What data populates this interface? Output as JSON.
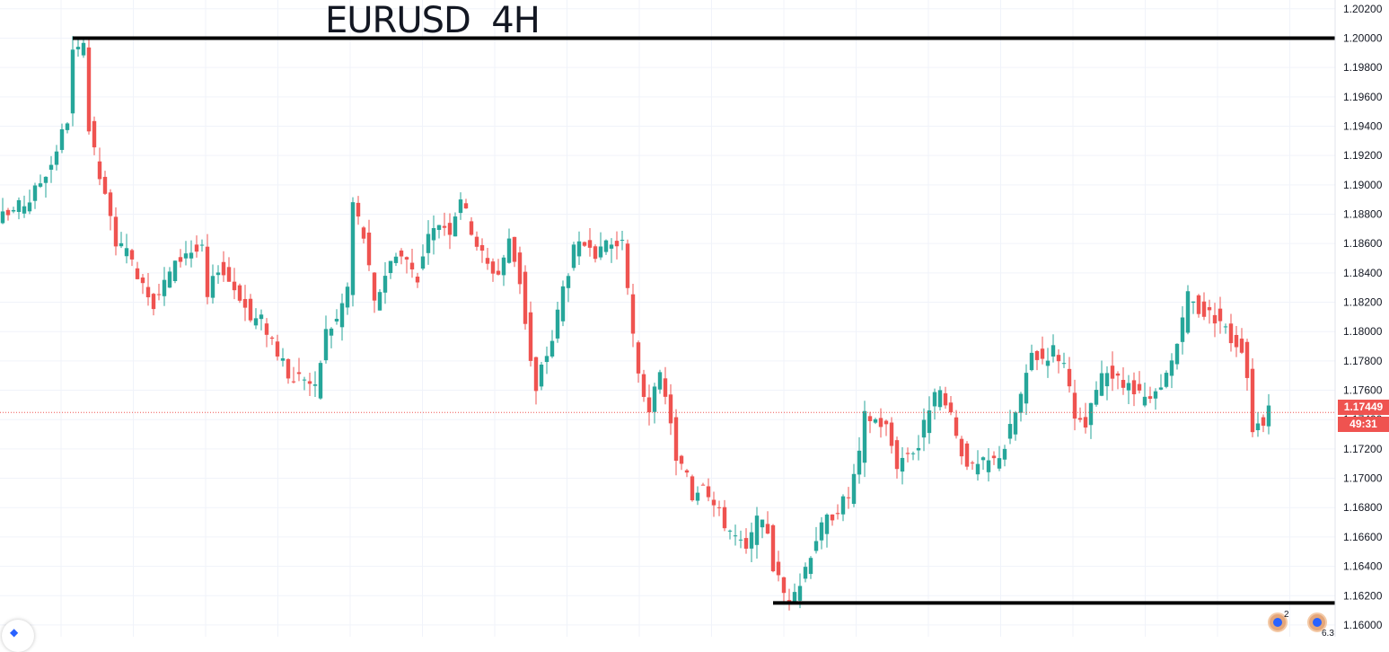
{
  "title": "EURUSD  4H",
  "current_price_label": "1.17449",
  "countdown_label": "49:31",
  "event_badges": [
    {
      "name": "event-badge-1",
      "count": "2"
    },
    {
      "name": "event-badge-2",
      "count": "6.3"
    }
  ],
  "colors": {
    "up": "#26a69a",
    "down": "#ef5350",
    "grid": "#f0f3fa",
    "axis_text": "#131722",
    "level_line": "#000000"
  },
  "chart_data": {
    "type": "candlestick",
    "symbol": "EURUSD",
    "timeframe": "4H",
    "title": "EURUSD  4H",
    "ylim": [
      1.1592,
      1.2026
    ],
    "y_ticks": [
      "1.20200",
      "1.20000",
      "1.19800",
      "1.19600",
      "1.19400",
      "1.19200",
      "1.19000",
      "1.18800",
      "1.18600",
      "1.18400",
      "1.18200",
      "1.18000",
      "1.17800",
      "1.17600",
      "1.17400",
      "1.17200",
      "1.17000",
      "1.16800",
      "1.16600",
      "1.16400",
      "1.16200",
      "1.16000"
    ],
    "current_price": 1.17449,
    "horizontal_levels": [
      {
        "name": "resistance",
        "price": 1.2,
        "from_bar": 13
      },
      {
        "name": "support",
        "price": 1.1615,
        "from_bar": 143
      }
    ],
    "grid": true,
    "close_path": [
      [
        0,
        1.1878
      ],
      [
        5,
        1.189
      ],
      [
        9,
        1.1915
      ],
      [
        12,
        1.1945
      ],
      [
        13,
        1.199
      ],
      [
        15,
        1.1992
      ],
      [
        16,
        1.1938
      ],
      [
        18,
        1.1905
      ],
      [
        21,
        1.1862
      ],
      [
        23,
        1.1852
      ],
      [
        26,
        1.1835
      ],
      [
        28,
        1.182
      ],
      [
        31,
        1.184
      ],
      [
        34,
        1.1855
      ],
      [
        37,
        1.1855
      ],
      [
        38,
        1.1822
      ],
      [
        40,
        1.1845
      ],
      [
        42,
        1.1835
      ],
      [
        44,
        1.1825
      ],
      [
        46,
        1.1808
      ],
      [
        48,
        1.1808
      ],
      [
        50,
        1.1795
      ],
      [
        53,
        1.1768
      ],
      [
        56,
        1.177
      ],
      [
        58,
        1.176
      ],
      [
        60,
        1.18
      ],
      [
        62,
        1.1808
      ],
      [
        64,
        1.183
      ],
      [
        65,
        1.1888
      ],
      [
        67,
        1.1865
      ],
      [
        69,
        1.1818
      ],
      [
        71,
        1.184
      ],
      [
        73,
        1.1855
      ],
      [
        75,
        1.1848
      ],
      [
        77,
        1.1838
      ],
      [
        79,
        1.1862
      ],
      [
        81,
        1.1875
      ],
      [
        83,
        1.187
      ],
      [
        85,
        1.1893
      ],
      [
        86,
        1.188
      ],
      [
        88,
        1.186
      ],
      [
        90,
        1.1845
      ],
      [
        92,
        1.184
      ],
      [
        94,
        1.1862
      ],
      [
        96,
        1.1835
      ],
      [
        98,
        1.178
      ],
      [
        99,
        1.1758
      ],
      [
        100,
        1.1775
      ],
      [
        102,
        1.1795
      ],
      [
        104,
        1.183
      ],
      [
        106,
        1.1855
      ],
      [
        108,
        1.186
      ],
      [
        110,
        1.1845
      ],
      [
        112,
        1.1862
      ],
      [
        114,
        1.1858
      ],
      [
        115,
        1.1865
      ],
      [
        116,
        1.1825
      ],
      [
        118,
        1.1768
      ],
      [
        120,
        1.1748
      ],
      [
        122,
        1.1768
      ],
      [
        124,
        1.174
      ],
      [
        125,
        1.171
      ],
      [
        127,
        1.1705
      ],
      [
        128,
        1.1688
      ],
      [
        130,
        1.17
      ],
      [
        132,
        1.1682
      ],
      [
        134,
        1.167
      ],
      [
        136,
        1.166
      ],
      [
        138,
        1.165
      ],
      [
        140,
        1.167
      ],
      [
        142,
        1.1665
      ],
      [
        143,
        1.164
      ],
      [
        145,
        1.1622
      ],
      [
        147,
        1.1618
      ],
      [
        149,
        1.164
      ],
      [
        151,
        1.166
      ],
      [
        153,
        1.1672
      ],
      [
        155,
        1.168
      ],
      [
        157,
        1.1688
      ],
      [
        159,
        1.1715
      ],
      [
        160,
        1.1742
      ],
      [
        162,
        1.174
      ],
      [
        164,
        1.1735
      ],
      [
        166,
        1.171
      ],
      [
        168,
        1.1718
      ],
      [
        170,
        1.1722
      ],
      [
        172,
        1.175
      ],
      [
        174,
        1.1758
      ],
      [
        176,
        1.174
      ],
      [
        178,
        1.1718
      ],
      [
        180,
        1.1706
      ],
      [
        182,
        1.171
      ],
      [
        184,
        1.1712
      ],
      [
        186,
        1.1722
      ],
      [
        188,
        1.1745
      ],
      [
        190,
        1.1768
      ],
      [
        191,
        1.1785
      ],
      [
        193,
        1.1782
      ],
      [
        195,
        1.1788
      ],
      [
        197,
        1.1778
      ],
      [
        199,
        1.1738
      ],
      [
        201,
        1.1735
      ],
      [
        203,
        1.176
      ],
      [
        205,
        1.1775
      ],
      [
        207,
        1.1765
      ],
      [
        209,
        1.1762
      ],
      [
        211,
        1.1755
      ],
      [
        213,
        1.1752
      ],
      [
        215,
        1.176
      ],
      [
        217,
        1.178
      ],
      [
        219,
        1.1805
      ],
      [
        220,
        1.1825
      ],
      [
        222,
        1.1815
      ],
      [
        224,
        1.1812
      ],
      [
        226,
        1.1808
      ],
      [
        228,
        1.1795
      ],
      [
        230,
        1.179
      ],
      [
        231,
        1.177
      ],
      [
        232,
        1.1735
      ],
      [
        234,
        1.174
      ],
      [
        235,
        1.1745
      ]
    ]
  }
}
